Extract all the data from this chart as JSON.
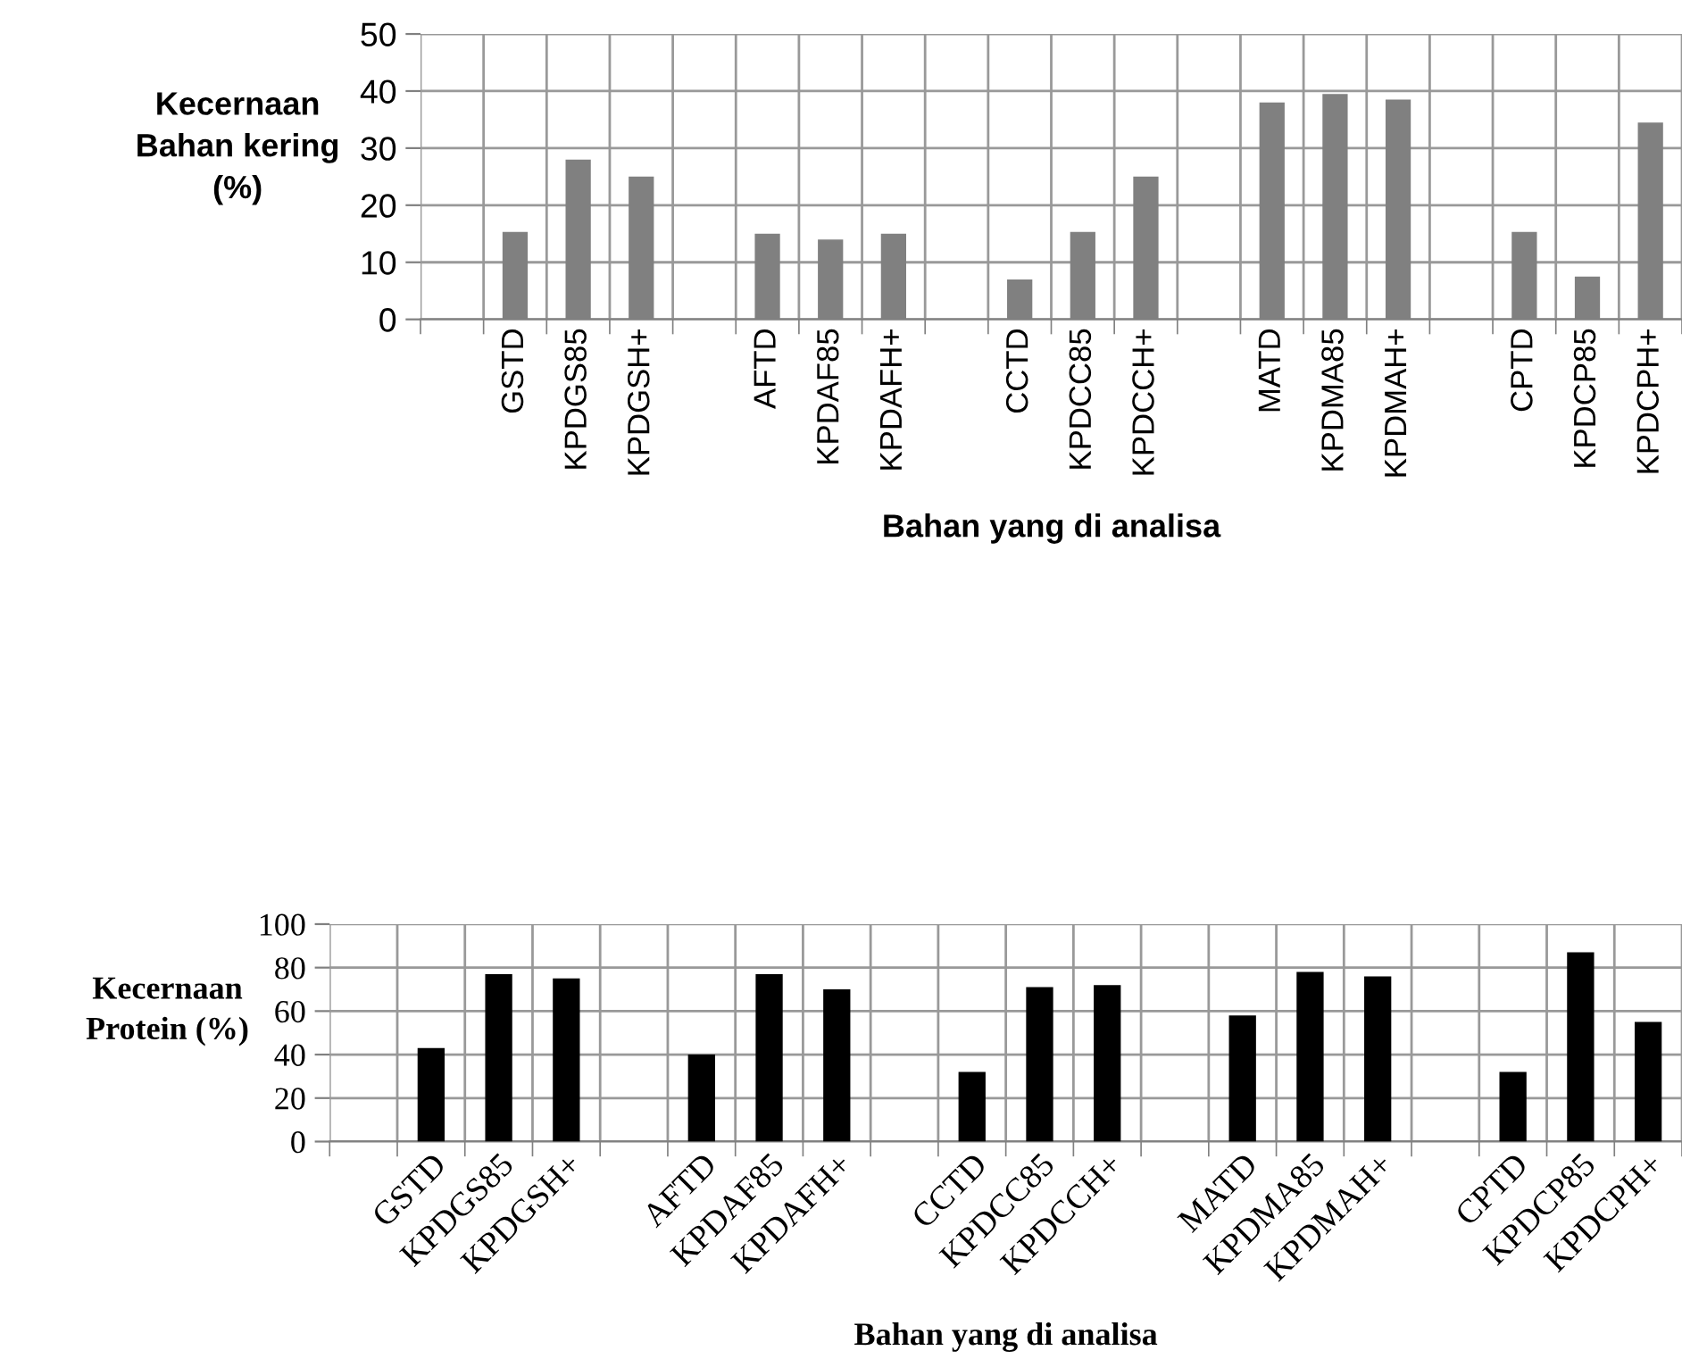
{
  "chart_data": [
    {
      "type": "bar",
      "xlabel": "Bahan yang di analisa",
      "ylabel": "Kecernaan\nBahan kering\n(%)",
      "categories": [
        null,
        "GSTD",
        "KPDGS85",
        "KPDGSH+",
        null,
        "AFTD",
        "KPDAF85",
        "KPDAFH+",
        null,
        "CCTD",
        "KPDCC85",
        "KPDCCH+",
        null,
        "MATD",
        "KPDMA85",
        "KPDMAH+",
        null,
        "CPTD",
        "KPDCP85",
        "KPDCPH+"
      ],
      "values": [
        null,
        15.3,
        28,
        25,
        null,
        15,
        14,
        15,
        null,
        7,
        15.3,
        25,
        null,
        38,
        39.5,
        38.5,
        null,
        15.3,
        7.5,
        34.5
      ],
      "color": "#808080",
      "ylim": [
        0,
        50
      ],
      "yticks": [
        0,
        10,
        20,
        30,
        40,
        50
      ],
      "grid": true
    },
    {
      "type": "bar",
      "xlabel": "Bahan yang di analisa",
      "ylabel": "Kecernaan\nProtein (%)",
      "categories": [
        null,
        "GSTD",
        "KPDGS85",
        "KPDGSH+",
        null,
        "AFTD",
        "KPDAF85",
        "KPDAFH+",
        null,
        "CCTD",
        "KPDCC85",
        "KPDCCH+",
        null,
        "MATD",
        "KPDMA85",
        "KPDMAH+",
        null,
        "CPTD",
        "KPDCP85",
        "KPDCPH+"
      ],
      "values": [
        null,
        43,
        77,
        75,
        null,
        40,
        77,
        70,
        null,
        32,
        71,
        72,
        null,
        58,
        78,
        76,
        null,
        32,
        87,
        55
      ],
      "color": "#000000",
      "ylim": [
        0,
        100
      ],
      "yticks": [
        0,
        20,
        40,
        60,
        80,
        100
      ],
      "grid": true
    }
  ]
}
